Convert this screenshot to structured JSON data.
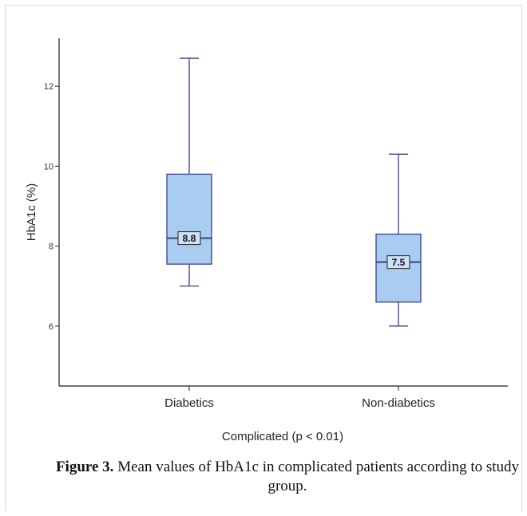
{
  "chart_data": {
    "type": "boxplot",
    "xlabel": "Complicated (p < 0.01)",
    "ylabel": "HbA1c (%)",
    "ylim": [
      4.5,
      13.2
    ],
    "yticks": [
      6,
      8,
      10,
      12
    ],
    "categories": [
      "Diabetics",
      "Non-diabetics"
    ],
    "boxes": [
      {
        "category": "Diabetics",
        "min": 7.0,
        "q1": 7.55,
        "median": 8.2,
        "q3": 9.8,
        "max": 12.7,
        "label": "8.8"
      },
      {
        "category": "Non-diabetics",
        "min": 6.0,
        "q1": 6.6,
        "median": 7.6,
        "q3": 8.3,
        "max": 10.3,
        "label": "7.5"
      }
    ],
    "colors": {
      "box_fill": "#a9cdf0",
      "box_stroke": "#3b3f8a",
      "axis": "#222222"
    }
  },
  "caption": {
    "bold": "Figure 3.",
    "text": " Mean values of HbA1c in complicated patients according to study group."
  }
}
